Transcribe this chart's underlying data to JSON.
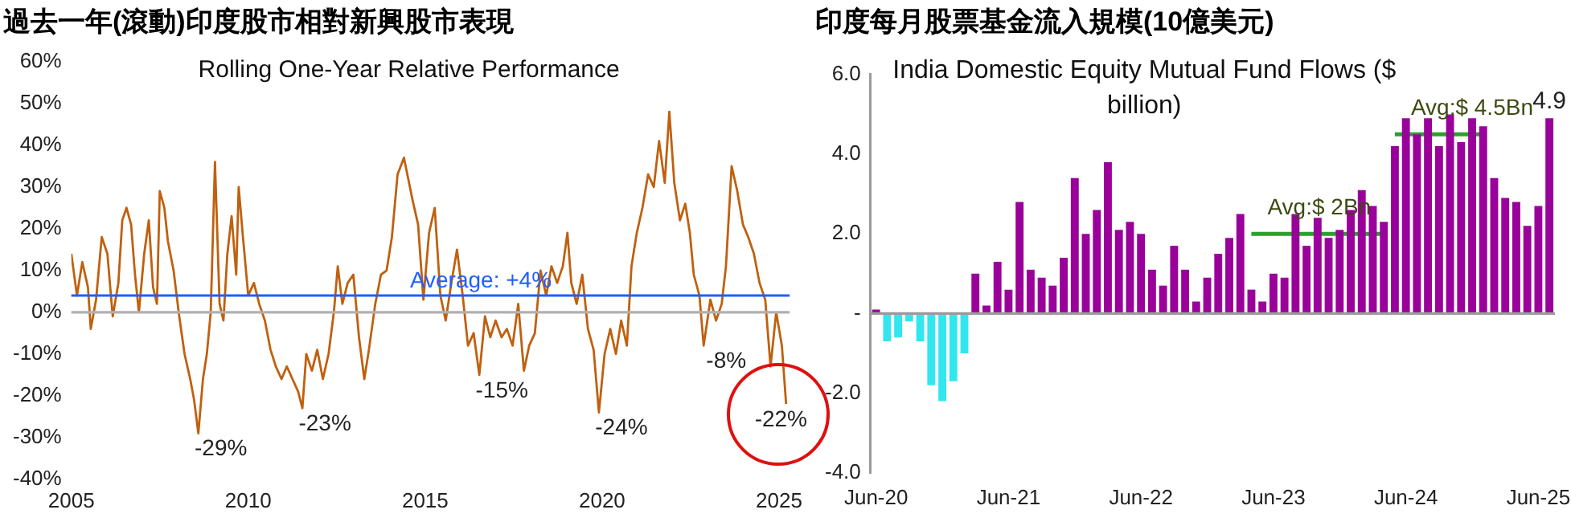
{
  "chart_data": [
    {
      "type": "line",
      "title": "過去一年(滾動)印度股市相對新興股市表現",
      "subtitle": "Rolling One-Year Relative Performance",
      "x": [
        2005.0,
        2005.16,
        2005.31,
        2005.47,
        2005.55,
        2005.7,
        2005.86,
        2006.02,
        2006.17,
        2006.33,
        2006.44,
        2006.56,
        2006.69,
        2006.8,
        2006.91,
        2007.06,
        2007.19,
        2007.31,
        2007.42,
        2007.5,
        2007.63,
        2007.73,
        2007.89,
        2008.05,
        2008.2,
        2008.36,
        2008.47,
        2008.59,
        2008.72,
        2008.83,
        2008.94,
        2009.06,
        2009.19,
        2009.3,
        2009.41,
        2009.53,
        2009.66,
        2009.73,
        2009.84,
        2010.0,
        2010.16,
        2010.31,
        2010.47,
        2010.63,
        2010.78,
        2010.94,
        2011.09,
        2011.25,
        2011.41,
        2011.53,
        2011.64,
        2011.8,
        2011.95,
        2012.11,
        2012.27,
        2012.42,
        2012.53,
        2012.66,
        2012.81,
        2012.97,
        2013.13,
        2013.28,
        2013.41,
        2013.59,
        2013.75,
        2013.91,
        2014.06,
        2014.22,
        2014.4,
        2014.64,
        2014.8,
        2014.95,
        2015.11,
        2015.27,
        2015.43,
        2015.58,
        2015.74,
        2015.9,
        2016.06,
        2016.21,
        2016.37,
        2016.53,
        2016.69,
        2016.84,
        2016.99,
        2017.16,
        2017.31,
        2017.47,
        2017.63,
        2017.79,
        2017.94,
        2018.1,
        2018.26,
        2018.42,
        2018.57,
        2018.73,
        2018.89,
        2019.02,
        2019.13,
        2019.28,
        2019.44,
        2019.6,
        2019.76,
        2019.91,
        2020.07,
        2020.23,
        2020.39,
        2020.54,
        2020.7,
        2020.83,
        2020.98,
        2021.14,
        2021.3,
        2021.46,
        2021.61,
        2021.77,
        2021.9,
        2022.04,
        2022.2,
        2022.35,
        2022.48,
        2022.59,
        2022.75,
        2022.87,
        2023.06,
        2023.22,
        2023.38,
        2023.5,
        2023.66,
        2023.82,
        2023.98,
        2024.13,
        2024.29,
        2024.45,
        2024.61,
        2024.76,
        2024.92,
        2025.08,
        2025.2
      ],
      "series": [
        {
          "color": "#c0600f",
          "values": [
            14,
            4,
            12,
            6,
            -4,
            3,
            18,
            14,
            -1,
            7,
            22,
            25,
            21,
            9,
            0,
            14,
            22,
            6,
            2,
            29,
            25,
            17,
            10,
            -1,
            -10,
            -16,
            -21,
            -29,
            -16,
            -10,
            0,
            36,
            2,
            -2,
            14,
            23,
            9,
            30,
            19,
            4,
            7,
            2,
            -2,
            -9,
            -13,
            -16,
            -13,
            -16,
            -19,
            -23,
            -10,
            -14,
            -9,
            -16,
            -10,
            0,
            11,
            2,
            7,
            9,
            -6,
            -16,
            -9,
            2,
            9,
            10,
            18,
            33,
            37,
            27,
            21,
            3,
            19,
            25,
            4,
            -2,
            7,
            15,
            4,
            -8,
            -5,
            -15,
            -1,
            -6,
            -2,
            -6,
            -4,
            -8,
            2,
            -14,
            -8,
            -5,
            10,
            4,
            11,
            7,
            11,
            19,
            7,
            2,
            9,
            -4,
            -9,
            -24,
            -10,
            -4,
            -10,
            -2,
            -8,
            11,
            19,
            25,
            33,
            30,
            41,
            31,
            48,
            31,
            22,
            26,
            19,
            9,
            4,
            -8,
            3,
            -2,
            2,
            11,
            35,
            29,
            21,
            18,
            14,
            7,
            3,
            -13,
            0,
            -8,
            -22
          ]
        }
      ],
      "xlim": [
        2005,
        2025.3
      ],
      "xticks": [
        2005,
        2010,
        2015,
        2020,
        2025
      ],
      "ylim": [
        -40,
        60
      ],
      "yticks": [
        {
          "value": 60,
          "label": "60%"
        },
        {
          "value": 50,
          "label": "50%"
        },
        {
          "value": 40,
          "label": "40%"
        },
        {
          "value": 30,
          "label": "30%"
        },
        {
          "value": 20,
          "label": "20%"
        },
        {
          "value": 10,
          "label": "10%"
        },
        {
          "value": 0,
          "label": "0%"
        },
        {
          "value": -10,
          "label": "-10%"
        },
        {
          "value": -20,
          "label": "-20%"
        },
        {
          "value": -30,
          "label": "-30%"
        },
        {
          "value": -40,
          "label": "-40%"
        }
      ],
      "ref_lines": [
        {
          "axis": "y",
          "value": 4,
          "label": "Average: +4%",
          "color": "#1f5fff"
        },
        {
          "axis": "y",
          "value": 0,
          "label": null,
          "color": "#b0b0b0"
        }
      ],
      "annotations": [
        {
          "text": "-29%",
          "x": 2008.59,
          "y": -29
        },
        {
          "text": "-23%",
          "x": 2011.53,
          "y": -23
        },
        {
          "text": "-15%",
          "x": 2016.53,
          "y": -15
        },
        {
          "text": "-24%",
          "x": 2019.91,
          "y": -24
        },
        {
          "text": "-8%",
          "x": 2022.87,
          "y": -8
        },
        {
          "text": "-22%",
          "x": 2025.2,
          "y": -22
        }
      ],
      "grid": false,
      "legend": false,
      "marker": "none"
    },
    {
      "type": "bar",
      "title": "印度每月股票基金流入規模(10億美元)",
      "subtitle": "India Domestic Equity Mutual Fund Flows ($ billion)",
      "categories": [
        "Jun-20",
        null,
        null,
        null,
        null,
        null,
        null,
        null,
        null,
        null,
        null,
        null,
        "Jun-21",
        null,
        null,
        null,
        null,
        null,
        null,
        null,
        null,
        null,
        null,
        null,
        "Jun-22",
        null,
        null,
        null,
        null,
        null,
        null,
        null,
        null,
        null,
        null,
        null,
        "Jun-23",
        null,
        null,
        null,
        null,
        null,
        null,
        null,
        null,
        null,
        null,
        null,
        "Jun-24",
        null,
        null,
        null,
        null,
        null,
        null,
        null,
        null,
        null,
        null,
        null,
        "Jun-25",
        null
      ],
      "series": [
        {
          "values": [
            0.1,
            -0.7,
            -0.6,
            -0.2,
            -0.7,
            -1.8,
            -2.2,
            -1.7,
            -1.0,
            1.0,
            0.2,
            1.3,
            0.6,
            2.8,
            1.1,
            0.9,
            0.7,
            1.4,
            3.4,
            2.0,
            2.6,
            3.8,
            2.1,
            2.3,
            2.0,
            1.1,
            0.7,
            1.7,
            1.1,
            0.3,
            0.9,
            1.5,
            1.9,
            2.5,
            0.6,
            0.3,
            1.0,
            0.9,
            2.5,
            1.7,
            2.4,
            1.9,
            2.1,
            2.6,
            3.1,
            2.7,
            2.3,
            4.2,
            4.9,
            4.5,
            4.9,
            4.2,
            5.0,
            4.3,
            4.9,
            4.7,
            3.4,
            2.9,
            2.8,
            2.2,
            2.7,
            4.9
          ],
          "colors": [
            "#9a009a",
            "#33e6ee",
            "#33e6ee",
            "#33e6ee",
            "#33e6ee",
            "#33e6ee",
            "#33e6ee",
            "#33e6ee",
            "#33e6ee",
            "#9a009a",
            "#9a009a",
            "#9a009a",
            "#9a009a",
            "#9a009a",
            "#9a009a",
            "#9a009a",
            "#9a009a",
            "#9a009a",
            "#9a009a",
            "#9a009a",
            "#9a009a",
            "#9a009a",
            "#9a009a",
            "#9a009a",
            "#9a009a",
            "#9a009a",
            "#9a009a",
            "#9a009a",
            "#9a009a",
            "#9a009a",
            "#9a009a",
            "#9a009a",
            "#9a009a",
            "#9a009a",
            "#9a009a",
            "#9a009a",
            "#9a009a",
            "#9a009a",
            "#9a009a",
            "#9a009a",
            "#9a009a",
            "#9a009a",
            "#9a009a",
            "#9a009a",
            "#9a009a",
            "#9a009a",
            "#9a009a",
            "#9a009a",
            "#9a009a",
            "#9a009a",
            "#9a009a",
            "#9a009a",
            "#9a009a",
            "#9a009a",
            "#9a009a",
            "#9a009a",
            "#9a009a",
            "#9a009a",
            "#9a009a",
            "#9a009a",
            "#9a009a",
            "#9a009a"
          ],
          "value_labels": [
            null,
            null,
            null,
            null,
            null,
            null,
            null,
            null,
            null,
            null,
            null,
            null,
            null,
            null,
            null,
            null,
            null,
            null,
            null,
            null,
            null,
            null,
            null,
            null,
            null,
            null,
            null,
            null,
            null,
            null,
            null,
            null,
            null,
            null,
            null,
            null,
            null,
            null,
            null,
            null,
            null,
            null,
            null,
            null,
            null,
            null,
            null,
            null,
            null,
            null,
            null,
            null,
            null,
            null,
            null,
            null,
            null,
            null,
            null,
            null,
            null,
            "4.9"
          ]
        },
        {
          "type": "line",
          "name": "Avg:$ 2Bn",
          "color": "#2ca02c",
          "values": [
            null,
            null,
            null,
            null,
            null,
            null,
            null,
            null,
            null,
            null,
            null,
            null,
            null,
            null,
            null,
            null,
            null,
            null,
            null,
            null,
            null,
            null,
            null,
            null,
            null,
            null,
            null,
            null,
            null,
            null,
            null,
            null,
            null,
            null,
            2,
            2,
            2,
            2,
            2,
            2,
            2,
            2,
            2,
            2,
            2,
            2,
            2,
            null,
            null,
            null,
            null,
            null,
            null,
            null,
            null,
            null,
            null,
            null,
            null,
            null,
            null,
            null
          ]
        },
        {
          "type": "line",
          "name": "Avg:$ 4.5Bn",
          "color": "#2ca02c",
          "values": [
            null,
            null,
            null,
            null,
            null,
            null,
            null,
            null,
            null,
            null,
            null,
            null,
            null,
            null,
            null,
            null,
            null,
            null,
            null,
            null,
            null,
            null,
            null,
            null,
            null,
            null,
            null,
            null,
            null,
            null,
            null,
            null,
            null,
            null,
            null,
            null,
            null,
            null,
            null,
            null,
            null,
            null,
            null,
            null,
            null,
            null,
            null,
            4.5,
            4.5,
            4.5,
            4.5,
            4.5,
            4.5,
            4.5,
            4.5,
            4.5,
            null,
            null,
            null,
            null,
            null,
            null
          ]
        }
      ],
      "ref_lines": [
        {
          "axis": "y",
          "value": 0,
          "label": null,
          "color": "#9a9a9a"
        }
      ],
      "ylim": [
        -4,
        6
      ],
      "yticks": [
        {
          "value": 6,
          "label": "6.0"
        },
        {
          "value": 4,
          "label": "4.0"
        },
        {
          "value": 2,
          "label": "2.0"
        },
        {
          "value": 0,
          "label": "-"
        },
        {
          "value": -2,
          "label": "-2.0"
        },
        {
          "value": -4,
          "label": "-4.0"
        }
      ],
      "grid": false,
      "legend": false,
      "marker": "none"
    }
  ]
}
